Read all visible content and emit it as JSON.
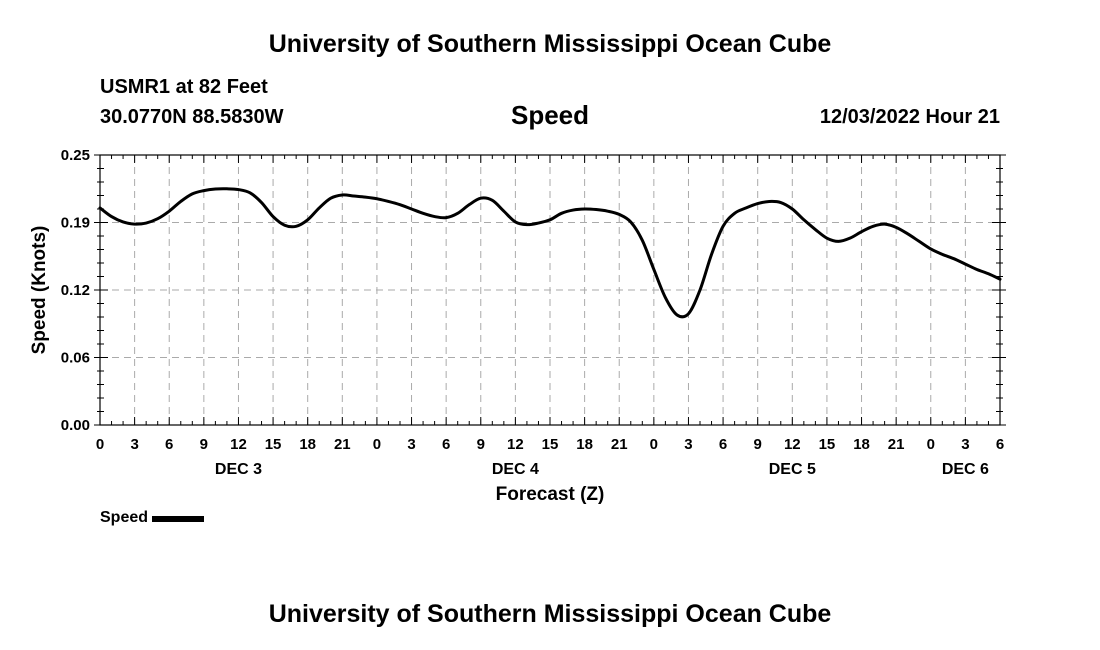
{
  "page": {
    "title_top": "University of Southern Mississippi Ocean Cube",
    "title_bottom": "University of Southern Mississippi Ocean Cube",
    "station": "USMR1 at 82 Feet",
    "coords": "30.0770N  88.5830W",
    "datetime": "12/03/2022 Hour 21"
  },
  "chart_data": {
    "type": "line",
    "title": "Speed",
    "xlabel": "Forecast (Z)",
    "ylabel": "Speed (Knots)",
    "ylim": [
      0.0,
      0.25
    ],
    "yticks": [
      "0.00",
      "0.06",
      "0.12",
      "0.19",
      "0.25"
    ],
    "ytick_values": [
      0.0,
      0.0625,
      0.125,
      0.1875,
      0.25
    ],
    "xlim_hours": [
      0,
      78
    ],
    "xtick_labels": [
      "0",
      "3",
      "6",
      "9",
      "12",
      "15",
      "18",
      "21",
      "0",
      "3",
      "6",
      "9",
      "12",
      "15",
      "18",
      "21",
      "0",
      "3",
      "6",
      "9",
      "12",
      "15",
      "18",
      "21",
      "0",
      "3",
      "6"
    ],
    "day_labels": [
      {
        "label": "DEC 3",
        "hour": 12
      },
      {
        "label": "DEC 4",
        "hour": 36
      },
      {
        "label": "DEC 5",
        "hour": 60
      },
      {
        "label": "DEC 6",
        "hour": 75
      }
    ],
    "grid": true,
    "series": [
      {
        "name": "Speed",
        "color": "#000000",
        "x": [
          0,
          1,
          2,
          3,
          4,
          5,
          6,
          7,
          8,
          9,
          10,
          11,
          12,
          13,
          14,
          15,
          16,
          17,
          18,
          19,
          20,
          21,
          22,
          23,
          24,
          25,
          26,
          27,
          28,
          29,
          30,
          31,
          32,
          33,
          34,
          35,
          36,
          37,
          38,
          39,
          40,
          41,
          42,
          43,
          44,
          45,
          46,
          47,
          48,
          49,
          50,
          51,
          52,
          53,
          54,
          55,
          56,
          57,
          58,
          59,
          60,
          61,
          62,
          63,
          64,
          65,
          66,
          67,
          68,
          69,
          70,
          71,
          72,
          73,
          74,
          75,
          76,
          77,
          78
        ],
        "values": [
          0.201,
          0.193,
          0.188,
          0.186,
          0.187,
          0.191,
          0.198,
          0.207,
          0.214,
          0.217,
          0.2185,
          0.2187,
          0.218,
          0.215,
          0.206,
          0.193,
          0.185,
          0.184,
          0.19,
          0.201,
          0.21,
          0.213,
          0.212,
          0.211,
          0.2095,
          0.207,
          0.204,
          0.2,
          0.196,
          0.193,
          0.192,
          0.196,
          0.204,
          0.21,
          0.208,
          0.198,
          0.188,
          0.1855,
          0.187,
          0.19,
          0.196,
          0.199,
          0.2,
          0.1995,
          0.198,
          0.195,
          0.188,
          0.171,
          0.144,
          0.118,
          0.102,
          0.103,
          0.125,
          0.158,
          0.184,
          0.196,
          0.201,
          0.205,
          0.207,
          0.206,
          0.2,
          0.19,
          0.181,
          0.173,
          0.17,
          0.173,
          0.179,
          0.184,
          0.186,
          0.183,
          0.177,
          0.17,
          0.163,
          0.158,
          0.154,
          0.149,
          0.144,
          0.14,
          0.135
        ]
      }
    ]
  }
}
